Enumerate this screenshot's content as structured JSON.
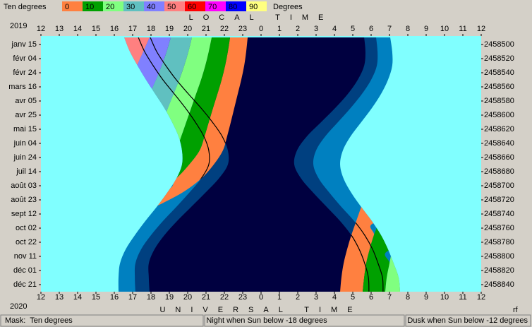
{
  "chart_data": {
    "type": "band",
    "header": "LOCAL TIME",
    "footer": "UNIVERSAL TIME",
    "year_top": "2019",
    "year_bottom": "2020",
    "corner": "rf",
    "background": "#80ffff",
    "line_color": "#000000",
    "legend": {
      "title": "Ten degrees",
      "unit": "Degrees",
      "levels": [
        0,
        10,
        20,
        30,
        40,
        50,
        60,
        70,
        80,
        90
      ],
      "colors": [
        "#ff8040",
        "#00a000",
        "#80ff80",
        "#60c0c0",
        "#8080ff",
        "#ff8080",
        "#ff0000",
        "#ff00ff",
        "#0000ff",
        "#ffff80"
      ]
    },
    "xlim": [
      12,
      36
    ],
    "xticks": [
      12,
      13,
      14,
      15,
      16,
      17,
      18,
      19,
      20,
      21,
      22,
      23,
      {
        "value": 24,
        "label": "0"
      },
      {
        "value": 25,
        "label": "1"
      },
      {
        "value": 26,
        "label": "2"
      },
      {
        "value": 27,
        "label": "3"
      },
      {
        "value": 28,
        "label": "4"
      },
      {
        "value": 29,
        "label": "5"
      },
      {
        "value": 30,
        "label": "6"
      },
      {
        "value": 31,
        "label": "7"
      },
      {
        "value": 32,
        "label": "8"
      },
      {
        "value": 33,
        "label": "9"
      },
      {
        "value": 34,
        "label": "10"
      },
      {
        "value": 35,
        "label": "11"
      },
      {
        "value": 36,
        "label": "12"
      }
    ],
    "ylim": [
      2458488,
      2458850
    ],
    "yticks": [
      2458500,
      2458520,
      2458540,
      2458560,
      2458580,
      2458600,
      2458620,
      2458640,
      2458660,
      2458680,
      2458700,
      2458720,
      2458740,
      2458760,
      2458780,
      2458800,
      2458820,
      2458840
    ],
    "ytick_labels": [
      "janv 15",
      "févr 04",
      "févr 24",
      "mars 16",
      "avr 05",
      "avr 25",
      "mai 15",
      "juin 04",
      "juin 24",
      "juil 14",
      "août 03",
      "août 23",
      "sept 12",
      "oct 02",
      "oct 22",
      "nov 11",
      "déc 01",
      "déc 21"
    ],
    "y": [
      2458490,
      2458510,
      2458530,
      2458550,
      2458570,
      2458590,
      2458610,
      2458630,
      2458650,
      2458670,
      2458690,
      2458710,
      2458730,
      2458750,
      2458770,
      2458790,
      2458810,
      2458830,
      2458850
    ],
    "sky": [
      {
        "color": "#0080c0",
        "from": [
          16.54,
          16.85,
          17.27,
          17.73,
          18.23,
          18.73,
          19.15,
          19.5,
          19.69,
          19.69,
          19.38,
          18.88,
          18.31,
          17.69,
          17.12,
          16.62,
          16.31,
          16.23,
          16.23
        ],
        "to": [
          31.04,
          31.15,
          31.15,
          30.92,
          30.54,
          30.04,
          29.46,
          28.88,
          28.46,
          28.31,
          28.5,
          28.92,
          29.46,
          30.04,
          30.54,
          30.92,
          31.23,
          31.5,
          31.58
        ]
      },
      {
        "color": "#004080",
        "from": [
          17.31,
          17.65,
          18.12,
          18.65,
          19.27,
          19.88,
          20.42,
          20.88,
          21.15,
          21.15,
          20.73,
          20.08,
          19.38,
          18.65,
          18.0,
          17.46,
          17.15,
          17.12,
          17.15
        ],
        "to": [
          30.27,
          30.35,
          30.31,
          30.0,
          29.5,
          28.88,
          28.19,
          27.5,
          27.0,
          26.85,
          27.15,
          27.73,
          28.38,
          29.08,
          29.65,
          30.08,
          30.38,
          30.62,
          30.65
        ]
      },
      {
        "color": "#000040",
        "from": [
          17.96,
          18.31,
          18.81,
          19.38,
          20.04,
          20.73,
          21.35,
          21.88,
          22.19,
          22.19,
          21.69,
          20.96,
          20.19,
          19.42,
          18.73,
          18.19,
          17.88,
          17.88,
          17.92
        ],
        "to": [
          29.62,
          29.69,
          29.62,
          29.27,
          28.73,
          28.04,
          27.27,
          26.5,
          25.96,
          25.81,
          26.19,
          26.85,
          27.58,
          28.31,
          28.92,
          29.35,
          29.65,
          29.85,
          29.88
        ]
      }
    ],
    "evening": [
      [
        23.27,
        23.19,
        23.08,
        22.92,
        22.73,
        22.54,
        22.35,
        22.15,
        21.92,
        21.42,
        20.73,
        19.69,
        18.23,
        null,
        null,
        null,
        null,
        null,
        null
      ],
      [
        22.31,
        22.19,
        22.04,
        21.85,
        21.62,
        21.38,
        21.15,
        20.92,
        20.65,
        20.08,
        19.35,
        18.31,
        null,
        null,
        null,
        null,
        null,
        null,
        null
      ],
      [
        21.31,
        21.15,
        20.96,
        20.73,
        20.46,
        20.19,
        19.92,
        19.65,
        19.35,
        18.73,
        null,
        null,
        null,
        null,
        null,
        null,
        null,
        null,
        null
      ],
      [
        20.23,
        20.04,
        19.81,
        19.54,
        19.23,
        18.92,
        18.62,
        18.31,
        null,
        null,
        null,
        null,
        null,
        null,
        null,
        null,
        null,
        null,
        null
      ],
      [
        19.08,
        18.85,
        18.58,
        18.27,
        17.92,
        17.58,
        17.27,
        null,
        null,
        null,
        null,
        null,
        null,
        null,
        null,
        null,
        null,
        null,
        null
      ],
      [
        17.92,
        17.58,
        17.23,
        16.88,
        16.54,
        16.19,
        null,
        null,
        null,
        null,
        null,
        null,
        null,
        null,
        null,
        null,
        null,
        null,
        null
      ]
    ],
    "morning": [
      [
        null,
        null,
        null,
        null,
        null,
        null,
        null,
        null,
        null,
        null,
        null,
        null,
        29.46,
        29.19,
        28.92,
        28.69,
        28.5,
        28.38,
        28.31
      ],
      [
        null,
        null,
        null,
        null,
        null,
        null,
        null,
        null,
        null,
        null,
        null,
        null,
        null,
        30.46,
        30.15,
        29.92,
        29.73,
        29.62,
        29.54
      ],
      [
        null,
        null,
        null,
        null,
        null,
        null,
        null,
        null,
        null,
        null,
        null,
        null,
        null,
        null,
        null,
        31.15,
        31.0,
        30.85,
        30.77
      ]
    ]
  },
  "status": {
    "mask": "Mask:  Ten degrees",
    "night": "Night when Sun below -18 degrees",
    "dusk": "Dusk when Sun below -12 degrees"
  }
}
